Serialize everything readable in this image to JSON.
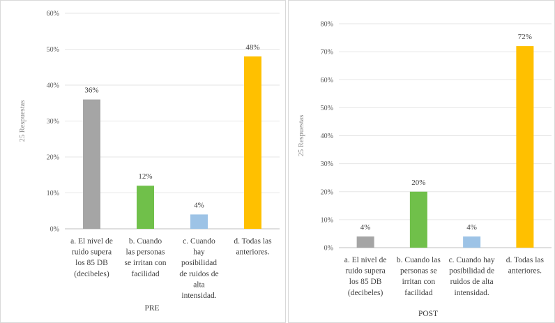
{
  "chart_data": [
    {
      "type": "bar",
      "title": "",
      "xlabel": "PRE",
      "ylabel": "25 Respuestas",
      "ylim": [
        0,
        60
      ],
      "yticks": [
        "0%",
        "10%",
        "20%",
        "30%",
        "40%",
        "50%",
        "60%"
      ],
      "grid": true,
      "categories": [
        "a. El nivel de ruido supera los 85 DB (decibeles)",
        "b. Cuando las personas se irritan con facilidad",
        "c. Cuando hay posibilidad de ruidos de alta intensidad.",
        "d. Todas las anteriores."
      ],
      "category_lines": [
        [
          "a. El nivel de",
          "ruido supera",
          "los 85 DB",
          "(decibeles)"
        ],
        [
          "b. Cuando",
          "las personas",
          "se irritan con",
          "facilidad"
        ],
        [
          "c. Cuando",
          "hay",
          "posibilidad",
          "de ruidos de",
          "alta",
          "intensidad."
        ],
        [
          "d. Todas las",
          "anteriores."
        ]
      ],
      "values": [
        36,
        12,
        4,
        48
      ],
      "data_labels": [
        "36%",
        "12%",
        "4%",
        "48%"
      ],
      "colors": [
        "#a5a5a5",
        "#70c04a",
        "#9dc3e6",
        "#ffc000"
      ]
    },
    {
      "type": "bar",
      "title": "",
      "xlabel": "POST",
      "ylabel": "25 Respuestas",
      "ylim": [
        0,
        80
      ],
      "yticks": [
        "0%",
        "10%",
        "20%",
        "30%",
        "40%",
        "50%",
        "60%",
        "70%",
        "80%"
      ],
      "grid": true,
      "categories": [
        "a. El nivel de ruido supera los 85 DB (decibeles)",
        "b. Cuando las personas se irritan con facilidad",
        "c. Cuando hay posibilidad de ruidos de alta intensidad.",
        "d. Todas las anteriores."
      ],
      "category_lines": [
        [
          "a. El nivel de",
          "ruido supera",
          "los 85 DB",
          "(decibeles)"
        ],
        [
          "b. Cuando las",
          "personas se",
          "irritan con",
          "facilidad"
        ],
        [
          "c. Cuando hay",
          "posibilidad de",
          "ruidos de alta",
          "intensidad."
        ],
        [
          "d. Todas las",
          "anteriores."
        ]
      ],
      "values": [
        4,
        20,
        4,
        72
      ],
      "data_labels": [
        "4%",
        "20%",
        "4%",
        "72%"
      ],
      "colors": [
        "#a5a5a5",
        "#70c04a",
        "#9dc3e6",
        "#ffc000"
      ]
    }
  ]
}
